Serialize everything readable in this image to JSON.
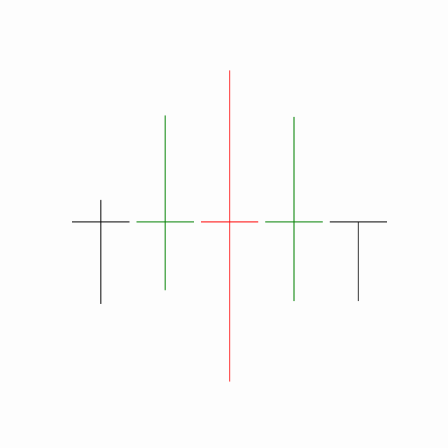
{
  "chart_data": {
    "type": "candlestick",
    "title": "",
    "xlabel": "",
    "ylabel": "",
    "axes_visible": false,
    "grid": false,
    "legend": "none",
    "baseline_value": 0,
    "ylim": [
      -115,
      115
    ],
    "series": [
      {
        "values": [
          {
            "open": 0,
            "close": 0,
            "high": 16,
            "low": -60,
            "color": "#000000"
          },
          {
            "open": 0,
            "close": 0,
            "high": 78,
            "low": -50,
            "color": "#008000"
          },
          {
            "open": 0,
            "close": 0,
            "high": 111,
            "low": -117,
            "color": "#ff0000"
          },
          {
            "open": 0,
            "close": 0,
            "high": 77,
            "low": -58,
            "color": "#008000"
          },
          {
            "open": 0,
            "close": 0,
            "high": 0,
            "low": -58,
            "color": "#000000"
          }
        ]
      }
    ],
    "colors": {
      "up": "#008000",
      "peak": "#ff0000",
      "neutral": "#000000",
      "background": "#fdfdfd"
    }
  }
}
